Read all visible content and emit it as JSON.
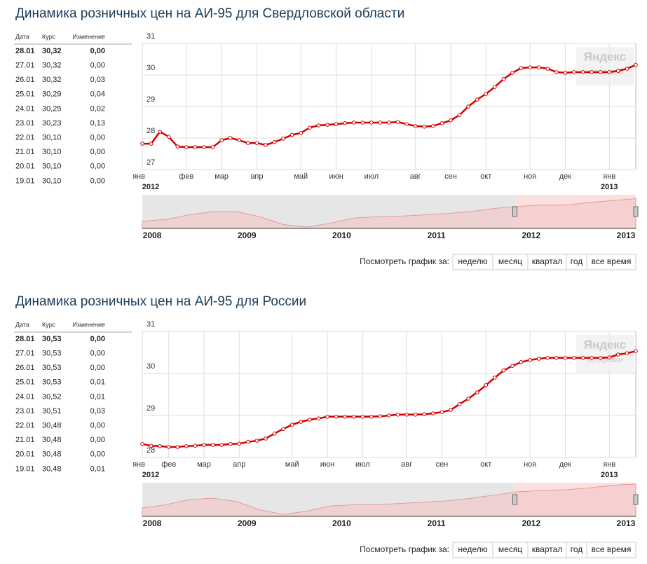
{
  "panels": [
    {
      "title": "Динамика розничных цен на АИ-95 для Свердловской области",
      "table": {
        "header": [
          "Дата",
          "Курс",
          "Изменение"
        ],
        "rows": [
          [
            "28.01",
            "30,32",
            "0,00"
          ],
          [
            "27.01",
            "30,32",
            "0,00"
          ],
          [
            "26.01",
            "30,32",
            "0,03"
          ],
          [
            "25.01",
            "30,29",
            "0,04"
          ],
          [
            "24.01",
            "30,25",
            "0,02"
          ],
          [
            "23.01",
            "30,23",
            "0,13"
          ],
          [
            "22.01",
            "30,10",
            "0,00"
          ],
          [
            "21.01",
            "30,10",
            "0,00"
          ],
          [
            "20.01",
            "30,10",
            "0,00"
          ],
          [
            "19.01",
            "30,10",
            "0,00"
          ]
        ]
      },
      "chart": {
        "type": "line",
        "color": "#d40000",
        "ylim": [
          27,
          31
        ],
        "yticks": [
          27,
          28,
          29,
          30,
          31
        ],
        "grid": true,
        "categories": [
          "янв",
          null,
          null,
          null,
          null,
          "фев",
          null,
          null,
          null,
          "мар",
          null,
          null,
          null,
          "апр",
          null,
          null,
          null,
          null,
          "май",
          null,
          null,
          null,
          "июн",
          null,
          null,
          null,
          "июл",
          null,
          null,
          null,
          null,
          "авг",
          null,
          null,
          null,
          "сен",
          null,
          null,
          null,
          "окт",
          null,
          null,
          null,
          null,
          "ноя",
          null,
          null,
          null,
          "дек",
          null,
          null,
          null,
          null,
          "янв",
          null,
          null,
          null
        ],
        "values": [
          27.82,
          27.82,
          28.2,
          28.04,
          27.73,
          27.71,
          27.71,
          27.71,
          27.71,
          27.93,
          28.0,
          27.93,
          27.84,
          27.84,
          27.78,
          27.87,
          27.98,
          28.1,
          28.16,
          28.33,
          28.4,
          28.42,
          28.44,
          28.47,
          28.49,
          28.49,
          28.49,
          28.49,
          28.49,
          28.51,
          28.44,
          28.38,
          28.36,
          28.38,
          28.47,
          28.56,
          28.73,
          29.0,
          29.22,
          29.4,
          29.62,
          29.87,
          30.07,
          30.22,
          30.24,
          30.24,
          30.2,
          30.09,
          30.07,
          30.09,
          30.09,
          30.09,
          30.09,
          30.09,
          30.13,
          30.2,
          30.32
        ],
        "years": [
          "2012",
          "2013"
        ],
        "watermark": [
          "Яндекс",
          "котировки"
        ]
      },
      "overview": {
        "ylim": [
          19,
          32
        ],
        "values": [
          21.75,
          22.5,
          24.25,
          25.5,
          25.5,
          23.5,
          20.5,
          19.5,
          21,
          23,
          23.5,
          23.75,
          24.25,
          24.75,
          25.5,
          26.75,
          27.5,
          28,
          28,
          29,
          29.75,
          30.5
        ],
        "years": [
          "2008",
          "2009",
          "2010",
          "2011",
          "2012",
          "2013"
        ]
      },
      "period": {
        "label": "Посмотреть график за:",
        "buttons": [
          "неделю",
          "месяц",
          "квартал",
          "год",
          "все время"
        ]
      }
    },
    {
      "title": "Динамика розничных цен на АИ-95 для России",
      "table": {
        "header": [
          "Дата",
          "Курс",
          "Изменение"
        ],
        "rows": [
          [
            "28.01",
            "30,53",
            "0,00"
          ],
          [
            "27.01",
            "30,53",
            "0,00"
          ],
          [
            "26.01",
            "30,53",
            "0,00"
          ],
          [
            "25.01",
            "30,53",
            "0,01"
          ],
          [
            "24.01",
            "30,52",
            "0,01"
          ],
          [
            "23.01",
            "30,51",
            "0,03"
          ],
          [
            "22.01",
            "30,48",
            "0,00"
          ],
          [
            "21.01",
            "30,48",
            "0,00"
          ],
          [
            "20.01",
            "30,48",
            "0,00"
          ],
          [
            "19.01",
            "30,48",
            "0,01"
          ]
        ]
      },
      "chart": {
        "type": "line",
        "color": "#d40000",
        "ylim": [
          28,
          31
        ],
        "yticks": [
          28,
          29,
          30,
          31
        ],
        "grid": true,
        "categories": [
          "янв",
          null,
          null,
          "фев",
          null,
          null,
          null,
          "мар",
          null,
          null,
          null,
          "апр",
          null,
          null,
          null,
          null,
          null,
          "май",
          null,
          null,
          null,
          "июн",
          null,
          null,
          null,
          "июл",
          null,
          null,
          null,
          null,
          "авг",
          null,
          null,
          null,
          "сен",
          null,
          null,
          null,
          null,
          "окт",
          null,
          null,
          null,
          null,
          "ноя",
          null,
          null,
          null,
          "дек",
          null,
          null,
          null,
          null,
          "янв",
          null,
          null,
          null
        ],
        "values": [
          28.32,
          28.28,
          28.27,
          28.25,
          28.25,
          28.27,
          28.28,
          28.3,
          28.3,
          28.3,
          28.32,
          28.33,
          28.37,
          28.4,
          28.45,
          28.57,
          28.68,
          28.78,
          28.85,
          28.9,
          28.93,
          28.97,
          28.97,
          28.97,
          28.97,
          28.97,
          28.97,
          28.98,
          29.0,
          29.02,
          29.02,
          29.02,
          29.03,
          29.05,
          29.08,
          29.13,
          29.27,
          29.4,
          29.55,
          29.72,
          29.9,
          30.07,
          30.18,
          30.27,
          30.32,
          30.35,
          30.37,
          30.37,
          30.37,
          30.37,
          30.37,
          30.37,
          30.37,
          30.38,
          30.45,
          30.48,
          30.53
        ],
        "years": [
          "2012",
          "2013"
        ],
        "watermark": [
          "Яндекс",
          "котировки"
        ]
      },
      "overview": {
        "ylim": [
          19,
          32
        ],
        "values": [
          22.25,
          23.5,
          25.5,
          26,
          24.75,
          21.5,
          19.75,
          21,
          23,
          23.5,
          23.5,
          24,
          24.5,
          25,
          26,
          27.25,
          28.5,
          29,
          29.25,
          30,
          31,
          31.5
        ],
        "years": [
          "2008",
          "2009",
          "2010",
          "2011",
          "2012",
          "2013"
        ]
      },
      "period": {
        "label": "Посмотреть график за:",
        "buttons": [
          "неделю",
          "месяц",
          "квартал",
          "год",
          "все время"
        ]
      }
    }
  ]
}
